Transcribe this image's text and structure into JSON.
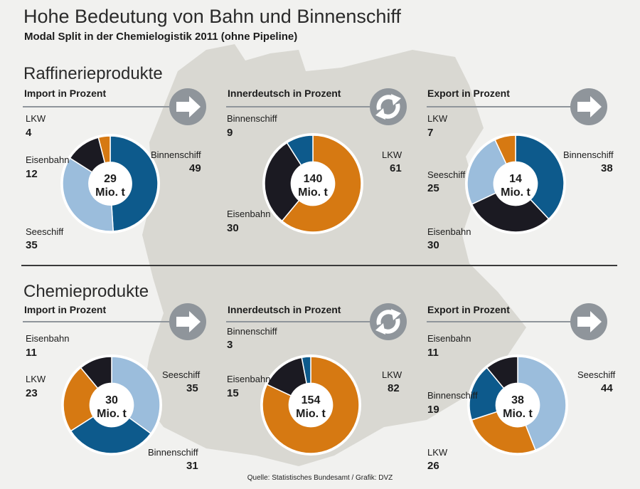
{
  "title": "Hohe Bedeutung von Bahn und Binnenschiff",
  "subtitle": "Modal Split in der Chemielogistik 2011 (ohne Pipeline)",
  "source": "Quelle: Statistisches Bundesamt / Grafik: DVZ",
  "colors": {
    "Binnenschiff": "#0d5a8c",
    "Seeschiff": "#9bbddc",
    "Eisenbahn": "#1b1a22",
    "LKW": "#d67912"
  },
  "sections": [
    {
      "title": "Raffinerieprodukte"
    },
    {
      "title": "Chemieprodukte"
    }
  ],
  "chart_data": [
    {
      "type": "pie",
      "section": "Raffinerieprodukte",
      "heading": "Import in Prozent",
      "arrow": "right-arrow",
      "total": "29",
      "unit": "Mio. t",
      "slices": [
        {
          "label": "Binnenschiff",
          "value": 49
        },
        {
          "label": "Seeschiff",
          "value": 35
        },
        {
          "label": "Eisenbahn",
          "value": 12
        },
        {
          "label": "LKW",
          "value": 4
        }
      ]
    },
    {
      "type": "pie",
      "section": "Raffinerieprodukte",
      "heading": "Innerdeutsch in Prozent",
      "arrow": "cycle-arrows",
      "total": "140",
      "unit": "Mio. t",
      "slices": [
        {
          "label": "LKW",
          "value": 61
        },
        {
          "label": "Eisenbahn",
          "value": 30
        },
        {
          "label": "Binnenschiff",
          "value": 9
        }
      ]
    },
    {
      "type": "pie",
      "section": "Raffinerieprodukte",
      "heading": "Export in Prozent",
      "arrow": "right-arrow",
      "total": "14",
      "unit": "Mio. t",
      "slices": [
        {
          "label": "Binnenschiff",
          "value": 38
        },
        {
          "label": "Eisenbahn",
          "value": 30
        },
        {
          "label": "Seeschiff",
          "value": 25
        },
        {
          "label": "LKW",
          "value": 7
        }
      ]
    },
    {
      "type": "pie",
      "section": "Chemieprodukte",
      "heading": "Import in Prozent",
      "arrow": "right-arrow",
      "total": "30",
      "unit": "Mio. t",
      "slices": [
        {
          "label": "Seeschiff",
          "value": 35
        },
        {
          "label": "Binnenschiff",
          "value": 31
        },
        {
          "label": "LKW",
          "value": 23
        },
        {
          "label": "Eisenbahn",
          "value": 11
        }
      ]
    },
    {
      "type": "pie",
      "section": "Chemieprodukte",
      "heading": "Innerdeutsch in Prozent",
      "arrow": "cycle-arrows",
      "total": "154",
      "unit": "Mio. t",
      "slices": [
        {
          "label": "LKW",
          "value": 82
        },
        {
          "label": "Eisenbahn",
          "value": 15
        },
        {
          "label": "Binnenschiff",
          "value": 3
        }
      ]
    },
    {
      "type": "pie",
      "section": "Chemieprodukte",
      "heading": "Export in Prozent",
      "arrow": "right-arrow",
      "total": "38",
      "unit": "Mio. t",
      "slices": [
        {
          "label": "Seeschiff",
          "value": 44
        },
        {
          "label": "LKW",
          "value": 26
        },
        {
          "label": "Binnenschiff",
          "value": 19
        },
        {
          "label": "Eisenbahn",
          "value": 11
        }
      ]
    }
  ]
}
